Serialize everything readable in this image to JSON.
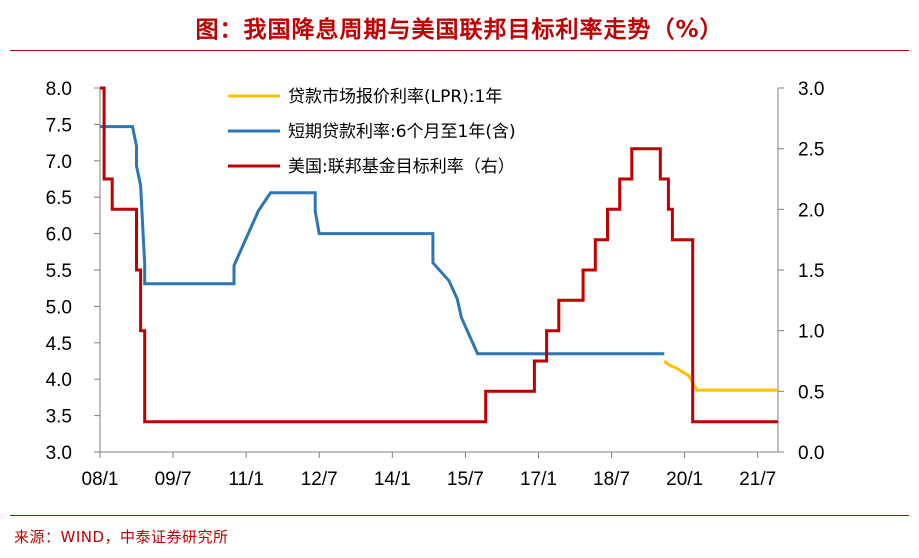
{
  "title": "图：我国降息周期与美国联邦目标利率走势（%）",
  "source": "来源：WIND，中泰证券研究所",
  "chart_data": {
    "type": "line",
    "x_ticks": [
      "08/1",
      "09/7",
      "11/1",
      "12/7",
      "14/1",
      "15/7",
      "17/1",
      "18/7",
      "20/1",
      "21/7"
    ],
    "y_left": {
      "min": 3.0,
      "max": 8.0,
      "ticks": [
        "3.0",
        "3.5",
        "4.0",
        "4.5",
        "5.0",
        "5.5",
        "6.0",
        "6.5",
        "7.0",
        "7.5",
        "8.0"
      ]
    },
    "y_right": {
      "min": 0.0,
      "max": 3.0,
      "ticks": [
        "0.0",
        "0.5",
        "1.0",
        "1.5",
        "2.0",
        "2.5",
        "3.0"
      ]
    },
    "legend_placement": "top-center",
    "series": [
      {
        "name": "贷款市场报价利率(LPR):1年",
        "color": "#ffc000",
        "axis": "left",
        "points": [
          [
            "2019-08",
            4.25
          ],
          [
            "2019-09",
            4.2
          ],
          [
            "2019-11",
            4.15
          ],
          [
            "2020-02",
            4.05
          ],
          [
            "2020-04",
            3.85
          ],
          [
            "2021-12",
            3.85
          ]
        ]
      },
      {
        "name": "短期贷款利率:6个月至1年(含)",
        "color": "#2e75b6",
        "axis": "left",
        "points": [
          [
            "2008-01",
            7.47
          ],
          [
            "2008-09",
            7.47
          ],
          [
            "2008-10",
            7.2
          ],
          [
            "2008-10",
            6.93
          ],
          [
            "2008-11",
            6.66
          ],
          [
            "2008-12",
            5.58
          ],
          [
            "2008-12",
            5.31
          ],
          [
            "2010-10",
            5.31
          ],
          [
            "2010-10",
            5.56
          ],
          [
            "2010-12",
            5.81
          ],
          [
            "2011-02",
            6.06
          ],
          [
            "2011-04",
            6.31
          ],
          [
            "2011-07",
            6.56
          ],
          [
            "2012-06",
            6.56
          ],
          [
            "2012-06",
            6.31
          ],
          [
            "2012-07",
            6.0
          ],
          [
            "2014-11",
            6.0
          ],
          [
            "2014-11",
            5.6
          ],
          [
            "2015-03",
            5.35
          ],
          [
            "2015-05",
            5.1
          ],
          [
            "2015-06",
            4.85
          ],
          [
            "2015-08",
            4.6
          ],
          [
            "2015-10",
            4.35
          ],
          [
            "2019-08",
            4.35
          ]
        ]
      },
      {
        "name": "美国:联邦基金目标利率（右）",
        "color": "#c00000",
        "axis": "right",
        "points": [
          [
            "2008-01",
            3.0
          ],
          [
            "2008-02",
            3.0
          ],
          [
            "2008-02",
            2.25
          ],
          [
            "2008-04",
            2.25
          ],
          [
            "2008-04",
            2.0
          ],
          [
            "2008-10",
            2.0
          ],
          [
            "2008-10",
            1.5
          ],
          [
            "2008-11",
            1.5
          ],
          [
            "2008-11",
            1.0
          ],
          [
            "2008-12",
            1.0
          ],
          [
            "2008-12",
            0.25
          ],
          [
            "2015-12",
            0.25
          ],
          [
            "2015-12",
            0.5
          ],
          [
            "2016-12",
            0.5
          ],
          [
            "2016-12",
            0.75
          ],
          [
            "2017-03",
            0.75
          ],
          [
            "2017-03",
            1.0
          ],
          [
            "2017-06",
            1.0
          ],
          [
            "2017-06",
            1.25
          ],
          [
            "2017-12",
            1.25
          ],
          [
            "2017-12",
            1.5
          ],
          [
            "2018-03",
            1.5
          ],
          [
            "2018-03",
            1.75
          ],
          [
            "2018-06",
            1.75
          ],
          [
            "2018-06",
            2.0
          ],
          [
            "2018-09",
            2.0
          ],
          [
            "2018-09",
            2.25
          ],
          [
            "2018-12",
            2.25
          ],
          [
            "2018-12",
            2.5
          ],
          [
            "2019-07",
            2.5
          ],
          [
            "2019-07",
            2.25
          ],
          [
            "2019-09",
            2.25
          ],
          [
            "2019-09",
            2.0
          ],
          [
            "2019-10",
            2.0
          ],
          [
            "2019-10",
            1.75
          ],
          [
            "2020-03",
            1.75
          ],
          [
            "2020-03",
            1.25
          ],
          [
            "2020-03",
            0.25
          ],
          [
            "2021-12",
            0.25
          ]
        ]
      }
    ]
  }
}
